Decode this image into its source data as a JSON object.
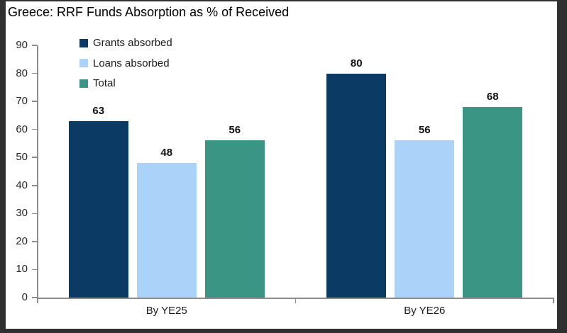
{
  "title": "Greece: RRF Funds Absorption as % of Received",
  "frame": {
    "border_color": "#303030",
    "background_color": "#ffffff"
  },
  "axis": {
    "line_color": "#8c8c8c",
    "tick_label_color": "#262626"
  },
  "chart_data": {
    "type": "bar",
    "title": "Greece: RRF Funds Absorption as % of Received",
    "categories": [
      "By YE25",
      "By YE26"
    ],
    "series": [
      {
        "name": "Grants absorbed",
        "color": "#0b3a64",
        "values": [
          63,
          80
        ]
      },
      {
        "name": "Loans absorbed",
        "color": "#abd2f8",
        "values": [
          48,
          56
        ]
      },
      {
        "name": "Total",
        "color": "#3a9584",
        "values": [
          56,
          68
        ]
      }
    ],
    "xlabel": "",
    "ylabel": "",
    "ylim": [
      0,
      90
    ],
    "ytick_step": 10,
    "yticks": [
      0,
      10,
      20,
      30,
      40,
      50,
      60,
      70,
      80,
      90
    ],
    "grid": false,
    "data_labels": true,
    "legend_position": "top-left-inside"
  }
}
